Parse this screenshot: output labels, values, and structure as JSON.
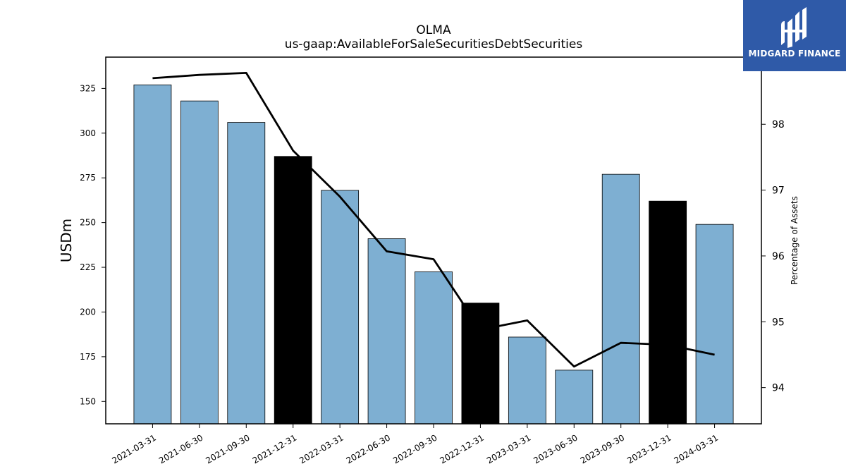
{
  "chart_data": {
    "type": "bar",
    "title": "OLMA",
    "subtitle": "us-gaap:AvailableForSaleSecuritiesDebtSecurities",
    "ylabel": "USDm",
    "y2label": "Percentage of Assets",
    "categories": [
      "2021-03-31",
      "2021-06-30",
      "2021-09-30",
      "2021-12-31",
      "2022-03-31",
      "2022-06-30",
      "2022-09-30",
      "2022-12-31",
      "2023-03-31",
      "2023-06-30",
      "2023-09-30",
      "2023-12-31",
      "2024-03-31"
    ],
    "values": [
      327,
      318,
      306,
      287,
      268,
      241,
      222.5,
      205,
      186,
      167.5,
      277,
      262,
      249
    ],
    "highlighted": [
      false,
      false,
      false,
      true,
      false,
      false,
      false,
      true,
      false,
      false,
      false,
      true,
      false
    ],
    "line_series": {
      "name": "Percentage of Assets",
      "values": [
        98.7,
        98.75,
        98.78,
        97.6,
        96.9,
        96.07,
        95.95,
        94.88,
        95.02,
        94.32,
        94.68,
        94.65,
        94.5
      ]
    },
    "ylim": [
      137.5,
      342.5
    ],
    "y2lim": [
      93.45,
      99.02
    ],
    "yticks": [
      150,
      175,
      200,
      225,
      250,
      275,
      300,
      325
    ],
    "y2ticks": [
      94,
      95,
      96,
      97,
      98
    ],
    "colors": {
      "bar": "#7eafd2",
      "bar_highlight": "#000000",
      "line": "#000000"
    },
    "grid": false
  },
  "logo": {
    "text": "MIDGARD FINANCE",
    "bg": "#2f5aa8"
  }
}
